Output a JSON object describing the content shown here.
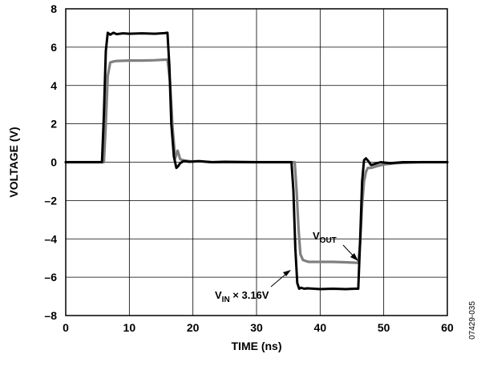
{
  "chart_data": {
    "type": "line",
    "xlabel": "TIME (ns)",
    "ylabel": "VOLTAGE (V)",
    "xlim": [
      0,
      60
    ],
    "ylim": [
      -8,
      8
    ],
    "xticks": [
      0,
      10,
      20,
      30,
      40,
      50,
      60
    ],
    "yticks": [
      -8,
      -6,
      -4,
      -2,
      0,
      2,
      4,
      6,
      8
    ],
    "ytick_labels": [
      "–8",
      "–6",
      "–4",
      "–2",
      "0",
      "2",
      "4",
      "6",
      "8"
    ],
    "grid": true,
    "figure_id": "07429-035",
    "annotations": [
      {
        "name": "vout",
        "main": "V",
        "sub": "OUT",
        "suffix": ""
      },
      {
        "name": "vin",
        "main": "V",
        "sub": "IN",
        "suffix": " × 3.16V"
      }
    ],
    "series": [
      {
        "name": "VIN × 3.16V",
        "color": "#000000",
        "x": [
          0,
          5.7,
          6.0,
          6.3,
          6.6,
          7.0,
          7.5,
          8.0,
          9.0,
          10.0,
          12.0,
          14.0,
          15.5,
          16.0,
          16.3,
          16.6,
          17.0,
          17.4,
          17.7,
          18.0,
          18.5,
          19.5,
          21.0,
          23.0,
          25.0,
          30.0,
          35.5,
          35.8,
          36.1,
          36.4,
          36.7,
          37.0,
          37.5,
          38.0,
          40.0,
          42.0,
          44.0,
          45.5,
          46.0,
          46.3,
          46.6,
          46.9,
          47.2,
          47.6,
          48.0,
          48.5,
          49.5,
          51.0,
          53.0,
          56.0,
          60.0
        ],
        "y": [
          0,
          0,
          2.5,
          5.8,
          6.75,
          6.65,
          6.75,
          6.68,
          6.72,
          6.7,
          6.72,
          6.7,
          6.73,
          6.75,
          5.0,
          2.0,
          0.3,
          -0.3,
          -0.2,
          -0.05,
          0.05,
          0.02,
          0.05,
          0.0,
          0.02,
          0.0,
          0.0,
          -1.5,
          -4.5,
          -6.3,
          -6.6,
          -6.55,
          -6.6,
          -6.58,
          -6.62,
          -6.6,
          -6.62,
          -6.6,
          -6.6,
          -4.0,
          -1.0,
          0.1,
          0.2,
          0.05,
          -0.15,
          -0.1,
          0.0,
          -0.05,
          0.0,
          0.0,
          0.0
        ]
      },
      {
        "name": "VOUT",
        "color": "#808080",
        "x": [
          0,
          6.0,
          6.3,
          6.6,
          7.0,
          7.5,
          8.0,
          10.0,
          12.0,
          14.0,
          16.0,
          16.4,
          16.8,
          17.2,
          17.6,
          18.0,
          18.5,
          19.5,
          21.0,
          23.0,
          25.0,
          30.0,
          36.0,
          36.3,
          36.6,
          36.9,
          37.3,
          37.7,
          38.2,
          40.0,
          42.0,
          44.0,
          46.0,
          46.3,
          46.6,
          46.9,
          47.2,
          47.5,
          48.0,
          49.0,
          50.0,
          52.0,
          56.0,
          60.0
        ],
        "y": [
          0,
          0,
          2.0,
          4.5,
          5.2,
          5.25,
          5.28,
          5.3,
          5.3,
          5.32,
          5.35,
          4.2,
          1.8,
          0.2,
          0.6,
          0.15,
          0.1,
          0.05,
          0.05,
          0.0,
          0.0,
          0.0,
          0.0,
          -1.5,
          -3.5,
          -4.8,
          -5.1,
          -5.15,
          -5.2,
          -5.2,
          -5.2,
          -5.22,
          -5.25,
          -4.2,
          -2.2,
          -1.0,
          -0.5,
          -0.3,
          -0.3,
          -0.2,
          -0.12,
          -0.05,
          0.0,
          0.0
        ]
      }
    ]
  }
}
